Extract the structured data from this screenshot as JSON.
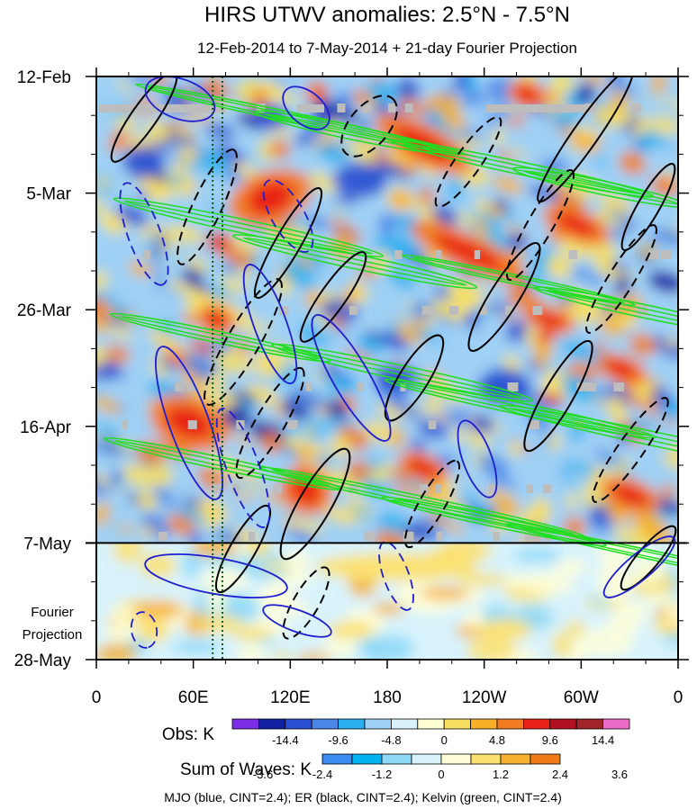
{
  "chart_data": {
    "type": "heatmap",
    "title": "HIRS UTWV anomalies: 2.5°N - 7.5°N",
    "subtitle": "12-Feb-2014 to 7-May-2014 + 21-day Fourier Projection",
    "x": {
      "tick_labels": [
        "0",
        "60E",
        "120E",
        "180",
        "120W",
        "60W",
        "0"
      ],
      "tick_degrees_east": [
        0,
        60,
        120,
        180,
        240,
        300,
        360
      ],
      "range": [
        0,
        360
      ]
    },
    "y": {
      "tick_labels": [
        "12-Feb",
        "5-Mar",
        "26-Mar",
        "16-Apr",
        "7-May",
        "28-May"
      ],
      "tick_days": [
        0,
        21,
        42,
        63,
        84,
        105
      ],
      "range": [
        0,
        105
      ],
      "observed_end_label": "7-May",
      "projection_label": [
        "Fourier",
        "Projection"
      ]
    },
    "reference_lines_deg": [
      72,
      78
    ],
    "obs_colorbar": {
      "label": "Obs: K",
      "tick_labels": [
        "-14.4",
        "-9.6",
        "-4.8",
        "0",
        "4.8",
        "9.6",
        "14.4"
      ],
      "colors": [
        "#7b2ee6",
        "#1020a0",
        "#2a4fd0",
        "#4a86e8",
        "#2ab0f0",
        "#9fd0f5",
        "#d8f1fb",
        "#fffed0",
        "#f8df60",
        "#f8b028",
        "#f47c20",
        "#e82018",
        "#b01020",
        "#a02428",
        "#ec6ac8"
      ]
    },
    "waves_colorbar": {
      "label": "Sum of Waves: K",
      "tick_labels": [
        "-3.6",
        "-2.4",
        "-1.2",
        "0",
        "1.2",
        "2.4",
        "3.6"
      ],
      "colors": [
        "#3a8cf0",
        "#00b4f0",
        "#8ed8f8",
        "#d8f3fc",
        "#fffed8",
        "#fce070",
        "#f7b030",
        "#f07a18"
      ]
    },
    "contours": [
      {
        "name": "MJO",
        "color": "#1f1fd0",
        "cint": 2.4
      },
      {
        "name": "ER",
        "color": "#000000",
        "cint": 2.4
      },
      {
        "name": "Kelvin",
        "color": "#22dd22",
        "cint": 2.4
      }
    ],
    "footer": "MJO (blue, CINT=2.4); ER (black, CINT=2.4); Kelvin (green, CINT=2.4)"
  }
}
